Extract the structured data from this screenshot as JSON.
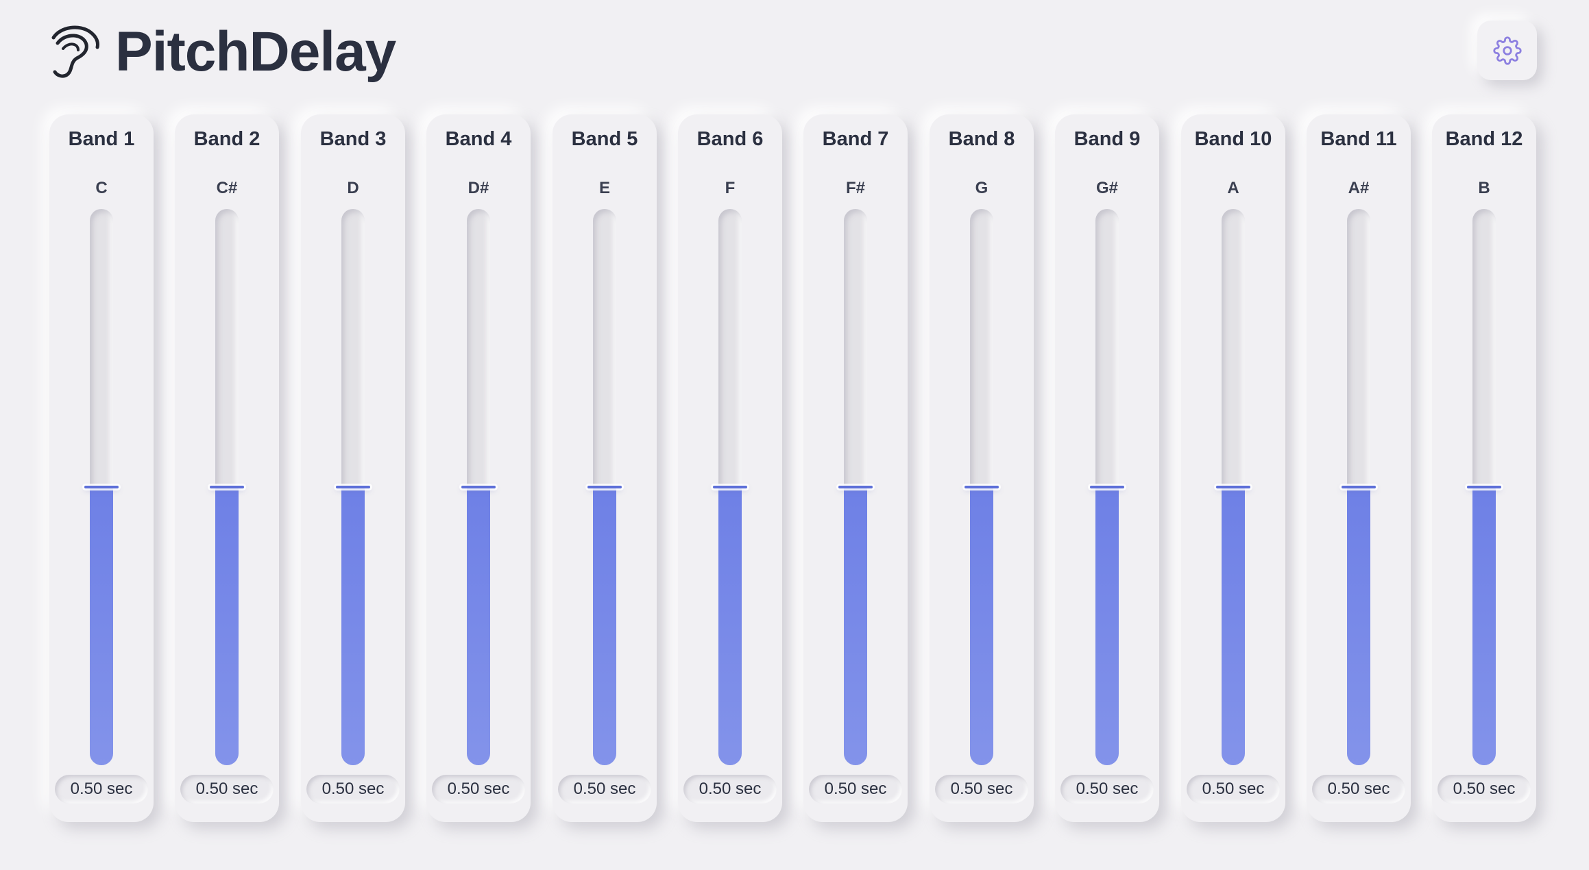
{
  "app": {
    "title": "PitchDelay",
    "logo_icon": "ear-logo-icon",
    "settings_icon": "gear-icon",
    "accent_color": "#6e80e6"
  },
  "bands": [
    {
      "label": "Band 1",
      "note": "C",
      "value": 0.5,
      "value_text": "0.50 sec"
    },
    {
      "label": "Band 2",
      "note": "C#",
      "value": 0.5,
      "value_text": "0.50 sec"
    },
    {
      "label": "Band 3",
      "note": "D",
      "value": 0.5,
      "value_text": "0.50 sec"
    },
    {
      "label": "Band 4",
      "note": "D#",
      "value": 0.5,
      "value_text": "0.50 sec"
    },
    {
      "label": "Band 5",
      "note": "E",
      "value": 0.5,
      "value_text": "0.50 sec"
    },
    {
      "label": "Band 6",
      "note": "F",
      "value": 0.5,
      "value_text": "0.50 sec"
    },
    {
      "label": "Band 7",
      "note": "F#",
      "value": 0.5,
      "value_text": "0.50 sec"
    },
    {
      "label": "Band 8",
      "note": "G",
      "value": 0.5,
      "value_text": "0.50 sec"
    },
    {
      "label": "Band 9",
      "note": "G#",
      "value": 0.5,
      "value_text": "0.50 sec"
    },
    {
      "label": "Band 10",
      "note": "A",
      "value": 0.5,
      "value_text": "0.50 sec"
    },
    {
      "label": "Band 11",
      "note": "A#",
      "value": 0.5,
      "value_text": "0.50 sec"
    },
    {
      "label": "Band 12",
      "note": "B",
      "value": 0.5,
      "value_text": "0.50 sec"
    }
  ]
}
